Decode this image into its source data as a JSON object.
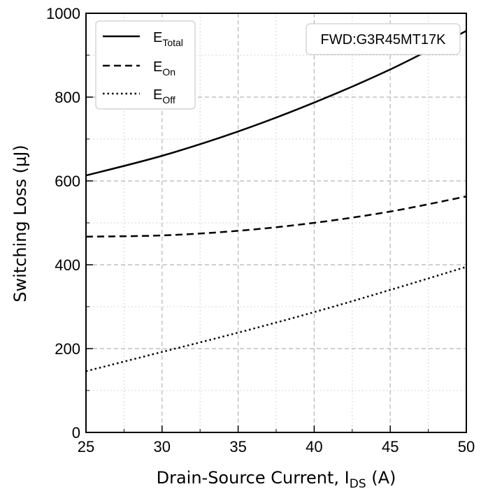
{
  "chart_data": {
    "type": "line",
    "xlabel": {
      "main": "Drain-Source Current, I",
      "sub": "DS",
      "unit": " (A)"
    },
    "ylabel": "Switching Loss (µJ)",
    "xlim": [
      25,
      50
    ],
    "ylim": [
      0,
      1000
    ],
    "xticks": [
      "25",
      "30",
      "35",
      "40",
      "45",
      "50"
    ],
    "yticks": [
      "0",
      "200",
      "400",
      "600",
      "800",
      "1000"
    ],
    "grid": true,
    "legend_position": "top-left",
    "annotation": "FWD:G3R45MT17K",
    "series": [
      {
        "name": "E",
        "name_sub": "Total",
        "style": "solid",
        "x": [
          25,
          30,
          35,
          40,
          45,
          50
        ],
        "y": [
          613,
          660,
          718,
          787,
          866,
          958
        ]
      },
      {
        "name": "E",
        "name_sub": "On",
        "style": "dashed",
        "x": [
          25,
          30,
          35,
          40,
          45,
          50
        ],
        "y": [
          467,
          470,
          481,
          500,
          527,
          563
        ]
      },
      {
        "name": "E",
        "name_sub": "Off",
        "style": "dotted",
        "x": [
          25,
          30,
          35,
          40,
          45,
          50
        ],
        "y": [
          146,
          192,
          238,
          287,
          340,
          395
        ]
      }
    ]
  }
}
